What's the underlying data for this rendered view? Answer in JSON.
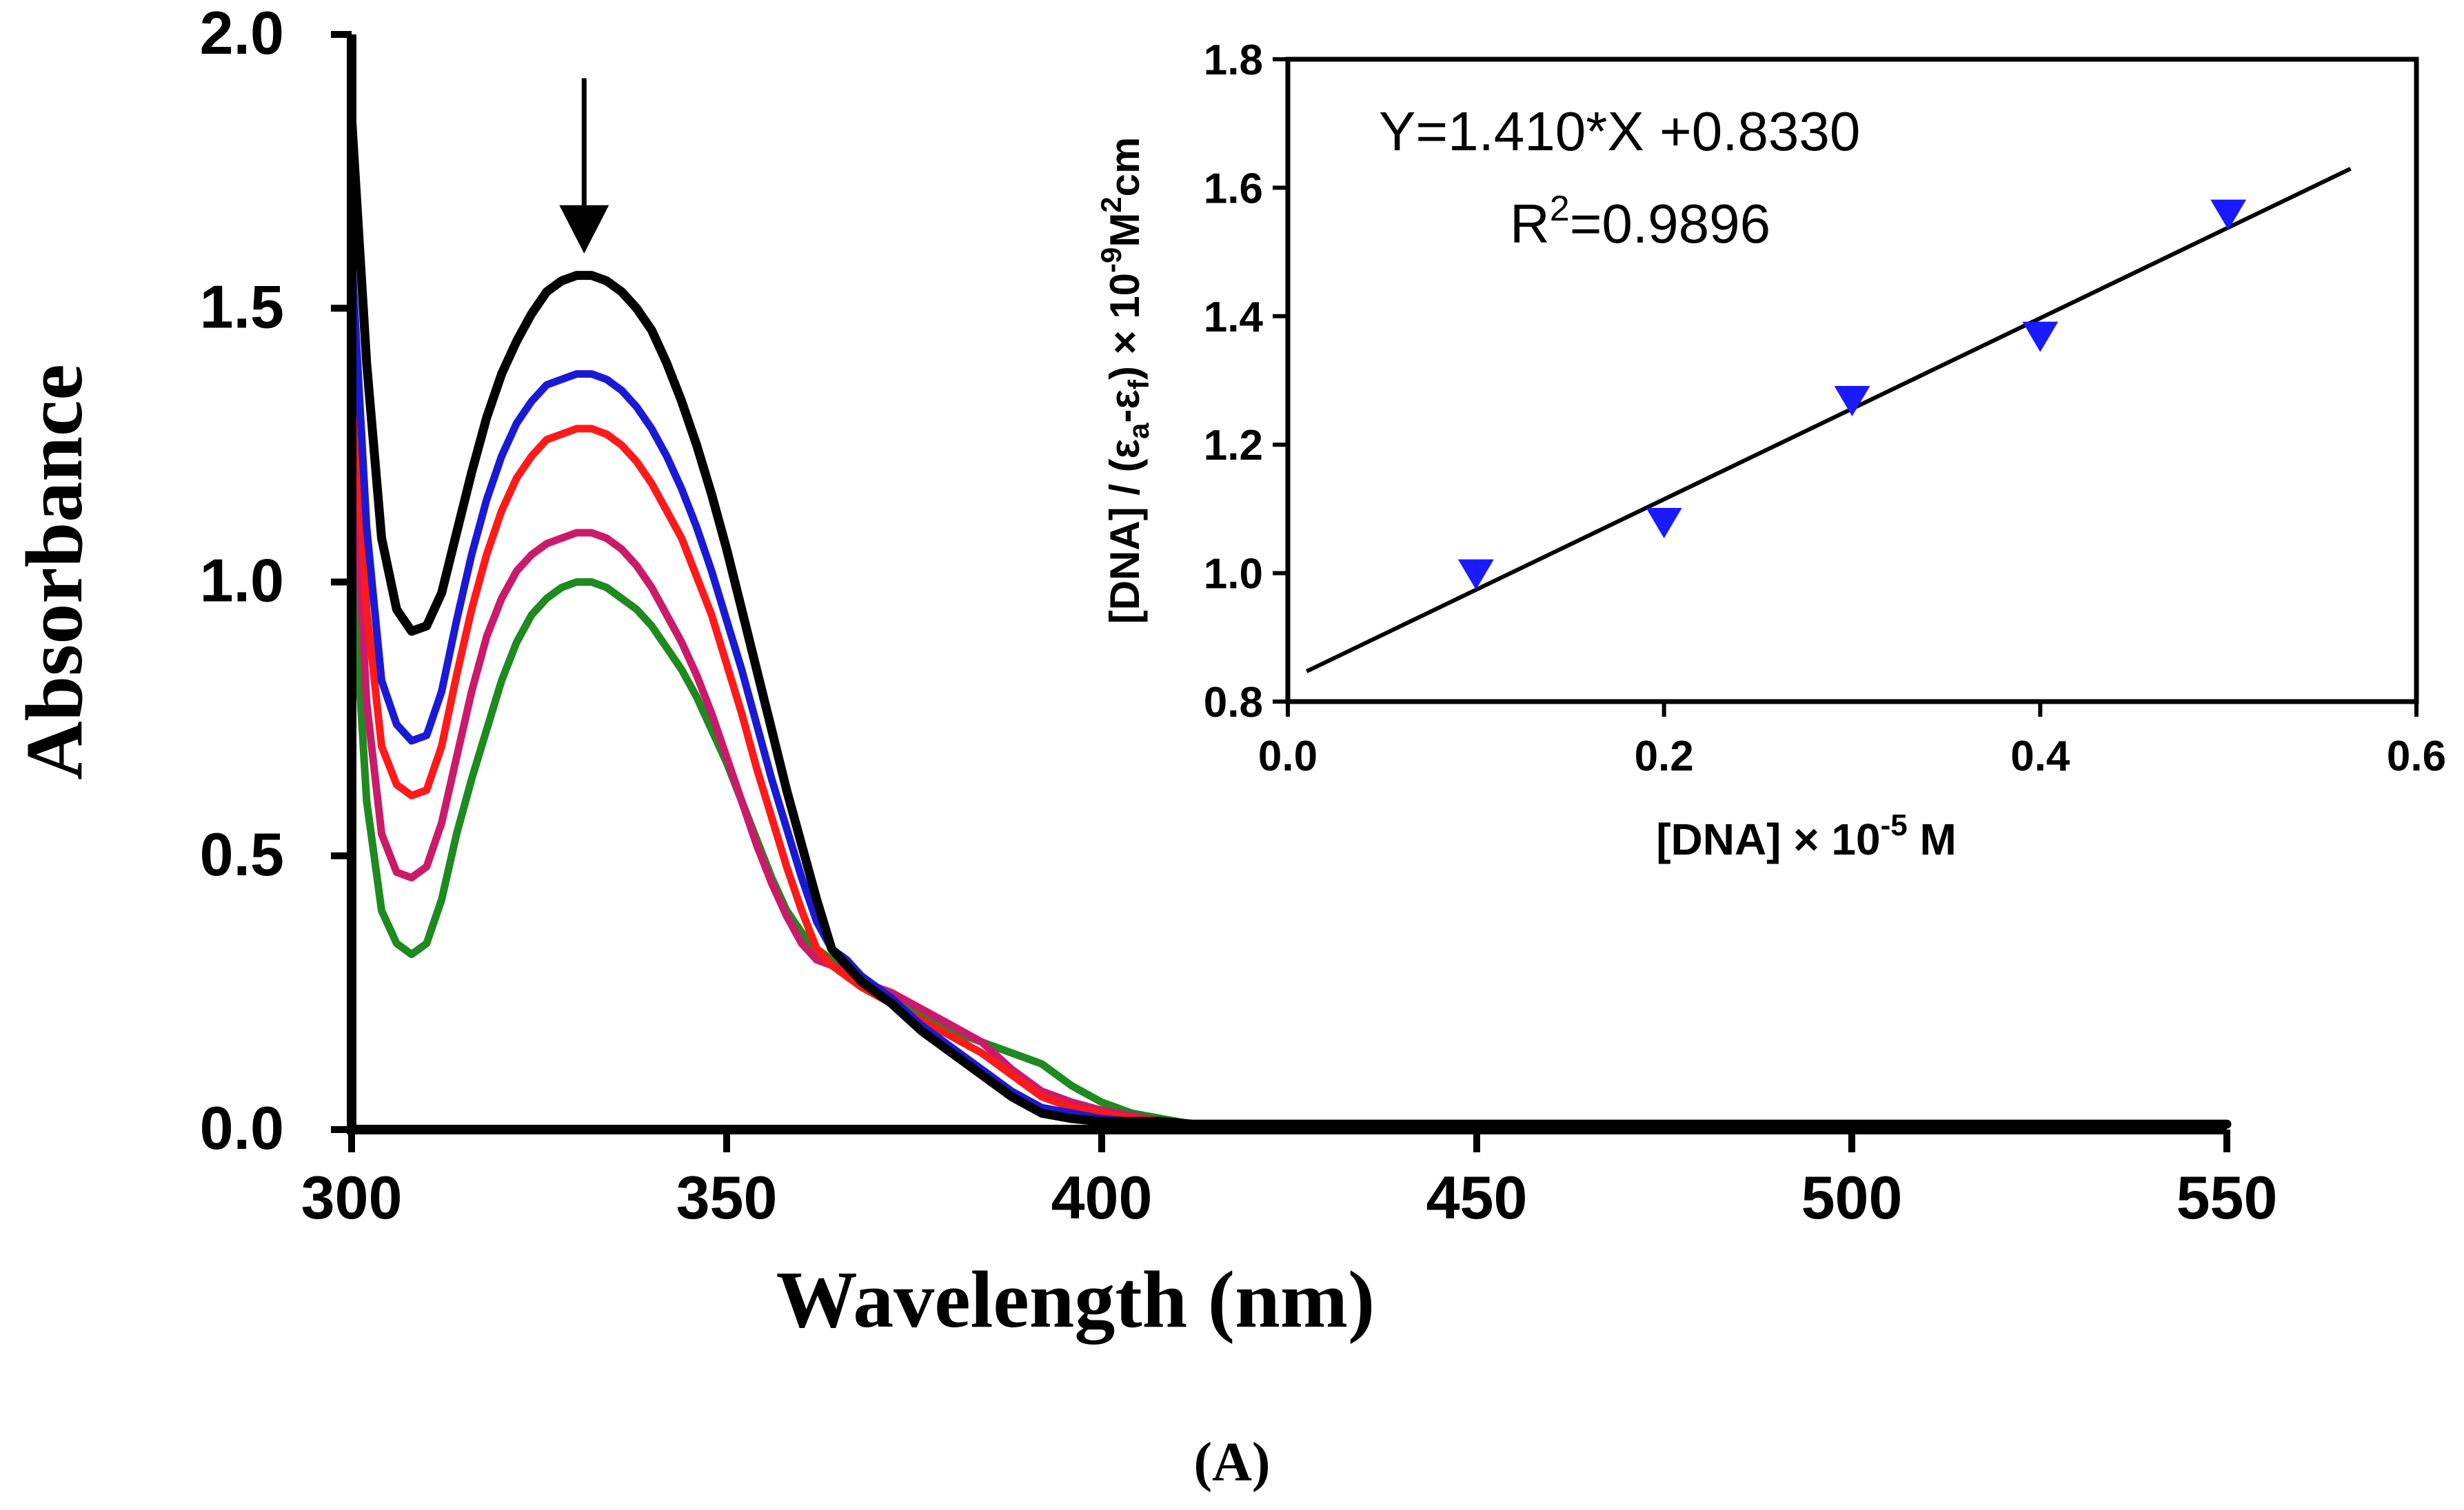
{
  "colors": {
    "axis": "#000000",
    "black_curve": "#000000",
    "blue_curve": "#1a1ad6",
    "red_curve": "#ff1a1a",
    "magenta_curve": "#cc1a6a",
    "green_curve": "#1f8a1f",
    "marker": "#1a1aff"
  },
  "panel_label": "(A)",
  "chart_data": [
    {
      "type": "line",
      "title": "",
      "xlabel": "Wavelength (nm)",
      "ylabel": "Absorbance",
      "xlim": [
        300,
        550
      ],
      "ylim": [
        0,
        2.0
      ],
      "xticks": [
        300,
        350,
        400,
        450,
        500,
        550
      ],
      "xtick_labels": [
        "300",
        "350",
        "400",
        "450",
        "500",
        "550"
      ],
      "yticks": [
        0,
        0.5,
        1.0,
        1.5,
        2.0
      ],
      "ytick_labels": [
        "0.0",
        "0.5",
        "1.0",
        "1.5",
        "2.0"
      ],
      "grid": false,
      "annotation": {
        "type": "arrow-down",
        "x": 331,
        "y_from": 1.92,
        "y_to": 1.6
      },
      "series": [
        {
          "name": "black",
          "color": "#000000",
          "x": [
            300,
            302,
            304,
            306,
            308,
            310,
            312,
            314,
            316,
            318,
            320,
            322,
            324,
            326,
            328,
            330,
            332,
            334,
            336,
            338,
            340,
            342,
            344,
            346,
            348,
            350,
            352,
            354,
            356,
            358,
            360,
            362,
            364,
            366,
            368,
            372,
            376,
            380,
            384,
            388,
            392,
            396,
            400,
            404,
            408,
            412,
            420,
            450,
            500,
            550
          ],
          "y": [
            1.85,
            1.4,
            1.08,
            0.95,
            0.91,
            0.92,
            0.98,
            1.09,
            1.2,
            1.3,
            1.38,
            1.44,
            1.49,
            1.53,
            1.55,
            1.56,
            1.56,
            1.55,
            1.53,
            1.5,
            1.46,
            1.4,
            1.33,
            1.25,
            1.16,
            1.06,
            0.95,
            0.84,
            0.73,
            0.62,
            0.52,
            0.42,
            0.33,
            0.3,
            0.27,
            0.23,
            0.18,
            0.14,
            0.1,
            0.06,
            0.03,
            0.02,
            0.015,
            0.015,
            0.015,
            0.01,
            0.01,
            0.01,
            0.01,
            0.01
          ]
        },
        {
          "name": "blue",
          "color": "#1a1ad6",
          "x": [
            300,
            302,
            304,
            306,
            308,
            310,
            312,
            314,
            316,
            318,
            320,
            322,
            324,
            326,
            328,
            330,
            332,
            334,
            336,
            338,
            340,
            342,
            344,
            346,
            348,
            350,
            352,
            354,
            356,
            358,
            360,
            362,
            364,
            366,
            368,
            372,
            376,
            380,
            384,
            388,
            392,
            396,
            400,
            404,
            408,
            410
          ],
          "y": [
            1.6,
            1.1,
            0.82,
            0.74,
            0.71,
            0.72,
            0.8,
            0.93,
            1.05,
            1.15,
            1.23,
            1.29,
            1.33,
            1.36,
            1.37,
            1.38,
            1.38,
            1.37,
            1.35,
            1.32,
            1.28,
            1.23,
            1.17,
            1.1,
            1.02,
            0.93,
            0.84,
            0.74,
            0.64,
            0.55,
            0.46,
            0.38,
            0.33,
            0.31,
            0.28,
            0.24,
            0.19,
            0.15,
            0.11,
            0.07,
            0.04,
            0.03,
            0.02,
            0.015,
            0.01,
            0.01
          ]
        },
        {
          "name": "red",
          "color": "#ff1a1a",
          "x": [
            300,
            302,
            304,
            306,
            308,
            310,
            312,
            314,
            316,
            318,
            320,
            322,
            324,
            326,
            328,
            330,
            332,
            334,
            336,
            338,
            340,
            342,
            344,
            346,
            348,
            350,
            352,
            354,
            356,
            358,
            360,
            362,
            364,
            366,
            368,
            372,
            376,
            380,
            384,
            388,
            392,
            396,
            400,
            404,
            408,
            410
          ],
          "y": [
            1.45,
            0.95,
            0.7,
            0.63,
            0.61,
            0.62,
            0.7,
            0.83,
            0.95,
            1.05,
            1.13,
            1.19,
            1.23,
            1.26,
            1.27,
            1.28,
            1.28,
            1.27,
            1.25,
            1.22,
            1.18,
            1.13,
            1.08,
            1.01,
            0.94,
            0.85,
            0.76,
            0.66,
            0.57,
            0.48,
            0.4,
            0.33,
            0.3,
            0.28,
            0.26,
            0.23,
            0.2,
            0.17,
            0.14,
            0.1,
            0.06,
            0.04,
            0.03,
            0.02,
            0.015,
            0.01
          ]
        },
        {
          "name": "magenta",
          "color": "#cc1a6a",
          "x": [
            300,
            302,
            304,
            306,
            308,
            310,
            312,
            314,
            316,
            318,
            320,
            322,
            324,
            326,
            328,
            330,
            332,
            334,
            336,
            338,
            340,
            342,
            344,
            346,
            348,
            350,
            352,
            354,
            356,
            358,
            360,
            362,
            364,
            366,
            368,
            372,
            376,
            380,
            384,
            388,
            392,
            396,
            400,
            404,
            408,
            410
          ],
          "y": [
            1.3,
            0.78,
            0.54,
            0.47,
            0.46,
            0.48,
            0.56,
            0.68,
            0.8,
            0.9,
            0.97,
            1.02,
            1.05,
            1.07,
            1.08,
            1.09,
            1.09,
            1.08,
            1.06,
            1.03,
            0.99,
            0.94,
            0.89,
            0.83,
            0.76,
            0.68,
            0.6,
            0.52,
            0.45,
            0.39,
            0.34,
            0.31,
            0.3,
            0.29,
            0.27,
            0.25,
            0.22,
            0.19,
            0.16,
            0.11,
            0.07,
            0.05,
            0.035,
            0.025,
            0.015,
            0.01
          ]
        },
        {
          "name": "green",
          "color": "#1f8a1f",
          "x": [
            300,
            302,
            304,
            306,
            308,
            310,
            312,
            314,
            316,
            318,
            320,
            322,
            324,
            326,
            328,
            330,
            332,
            334,
            336,
            338,
            340,
            342,
            344,
            346,
            348,
            350,
            352,
            354,
            356,
            358,
            360,
            362,
            364,
            366,
            368,
            372,
            376,
            380,
            384,
            388,
            390,
            392,
            396,
            400,
            404,
            408,
            412
          ],
          "y": [
            1.05,
            0.6,
            0.4,
            0.34,
            0.32,
            0.34,
            0.42,
            0.54,
            0.64,
            0.73,
            0.82,
            0.89,
            0.94,
            0.97,
            0.99,
            1.0,
            1.0,
            0.99,
            0.97,
            0.95,
            0.92,
            0.88,
            0.84,
            0.79,
            0.73,
            0.67,
            0.6,
            0.53,
            0.46,
            0.4,
            0.36,
            0.33,
            0.31,
            0.3,
            0.28,
            0.24,
            0.21,
            0.18,
            0.16,
            0.14,
            0.13,
            0.12,
            0.08,
            0.05,
            0.03,
            0.02,
            0.01
          ]
        }
      ]
    },
    {
      "type": "scatter",
      "title": "",
      "xlabel": "[DNA] × 10<sup>-5</sup> M",
      "xlabel_parts": {
        "main": "[DNA] × 10",
        "sup": "-5",
        "tail": " M"
      },
      "ylabel": "[DNA] / (ε<sub>a</sub>-ε<sub>f</sub>) × 10<sup>-9</sup>M<sup>2</sup>cm",
      "ylabel_parts": {
        "p1": "[DNA] / (ε",
        "sub_a": "a",
        "p2": "-ε",
        "sub_f": "f",
        "p3": ") × 10",
        "sup_9": "-9",
        "p4": "M",
        "sup_2": "2",
        "p5": "cm"
      },
      "xlim": [
        0,
        0.6
      ],
      "ylim": [
        0.8,
        1.8
      ],
      "xticks": [
        0.0,
        0.2,
        0.4,
        0.6
      ],
      "xtick_labels": [
        "0.0",
        "0.2",
        "0.4",
        "0.6"
      ],
      "yticks": [
        0.8,
        1.0,
        1.2,
        1.4,
        1.6,
        1.8
      ],
      "ytick_labels": [
        "0.8",
        "1.0",
        "1.2",
        "1.4",
        "1.6",
        "1.8"
      ],
      "grid": false,
      "points": {
        "x": [
          0.1,
          0.2,
          0.3,
          0.4,
          0.5
        ],
        "y": [
          1.0,
          1.08,
          1.27,
          1.37,
          1.56
        ]
      },
      "fit": {
        "slope": 1.41,
        "intercept": 0.833,
        "x_range": [
          0.01,
          0.565
        ]
      },
      "equation": "Y=1.410*X +0.8330",
      "r2_label": {
        "main": "R",
        "sup": "2",
        "tail": "=0.9896"
      }
    }
  ]
}
